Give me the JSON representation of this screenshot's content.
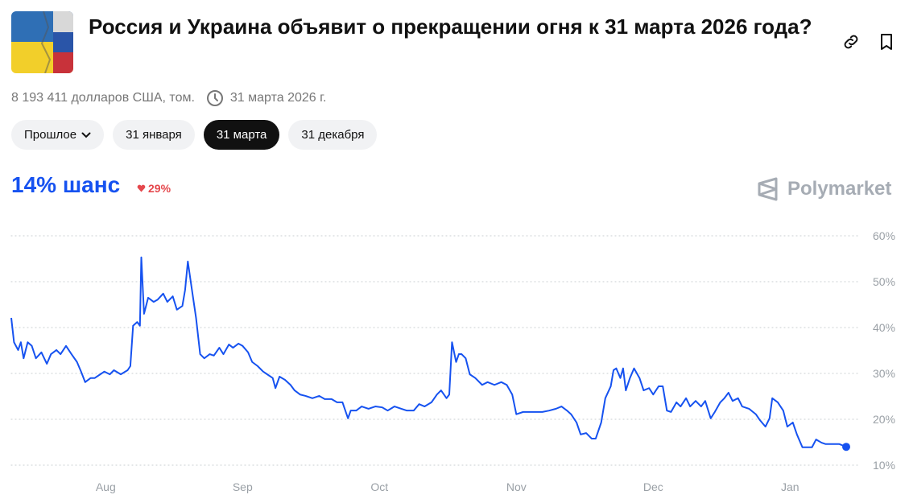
{
  "header": {
    "title": "Россия и Украина объявит о прекращении огня к 31 марта 2026 года?",
    "volume": "8 193 411 долларов США, том.",
    "end_date": "31 марта 2026 г."
  },
  "tabs": [
    "Прошлое",
    "31 января",
    "31 марта",
    "31 декабря"
  ],
  "active_tab": 2,
  "chance": {
    "label": "14% шанс",
    "change": "29%"
  },
  "brand": "Polymarket",
  "chart_data": {
    "type": "line",
    "x": [
      7.31,
      7.33,
      7.36,
      7.38,
      7.4,
      7.43,
      7.46,
      7.49,
      7.53,
      7.57,
      7.6,
      7.64,
      7.67,
      7.71,
      7.75,
      7.79,
      7.82,
      7.85,
      7.89,
      7.92,
      7.96,
      7.99,
      8.03,
      8.06,
      8.11,
      8.16,
      8.18,
      8.2,
      8.23,
      8.25,
      8.26,
      8.28,
      8.31,
      8.35,
      8.38,
      8.42,
      8.45,
      8.49,
      8.52,
      8.56,
      8.58,
      8.6,
      8.63,
      8.66,
      8.69,
      8.72,
      8.76,
      8.79,
      8.83,
      8.86,
      8.9,
      8.93,
      8.97,
      9.0,
      9.04,
      9.07,
      9.11,
      9.15,
      9.18,
      9.22,
      9.24,
      9.27,
      9.31,
      9.35,
      9.38,
      9.42,
      9.46,
      9.51,
      9.56,
      9.6,
      9.65,
      9.69,
      9.73,
      9.77,
      9.79,
      9.83,
      9.87,
      9.92,
      9.97,
      10.02,
      10.06,
      10.11,
      10.16,
      10.2,
      10.25,
      10.29,
      10.33,
      10.38,
      10.42,
      10.45,
      10.49,
      10.51,
      10.53,
      10.56,
      10.58,
      10.6,
      10.63,
      10.66,
      10.7,
      10.75,
      10.79,
      10.84,
      10.89,
      10.93,
      10.97,
      11.0,
      11.05,
      11.1,
      11.15,
      11.19,
      11.24,
      11.29,
      11.33,
      11.37,
      11.4,
      11.44,
      11.47,
      11.51,
      11.55,
      11.58,
      11.62,
      11.65,
      11.69,
      11.71,
      11.73,
      11.76,
      11.78,
      11.8,
      11.83,
      11.86,
      11.9,
      11.93,
      11.97,
      12.0,
      12.04,
      12.07,
      12.1,
      12.13,
      12.17,
      12.2,
      12.24,
      12.27,
      12.31,
      12.35,
      12.38,
      12.42,
      12.45,
      12.49,
      12.52,
      12.55,
      12.58,
      12.62,
      12.65,
      12.7,
      12.75,
      12.78,
      12.82,
      12.85,
      12.87,
      12.91,
      12.95,
      12.98,
      13.02,
      13.05,
      13.09,
      13.12,
      13.16,
      13.19,
      13.23,
      13.26,
      13.31,
      13.36,
      13.41
    ],
    "series": [
      {
        "color": "#1652f0",
        "values": [
          42.1,
          36.8,
          35.1,
          36.8,
          33.3,
          36.8,
          36.0,
          33.3,
          34.6,
          32.1,
          34.2,
          35.1,
          34.2,
          36.0,
          34.2,
          32.5,
          30.4,
          28.1,
          29.0,
          29.0,
          29.8,
          30.4,
          29.8,
          30.7,
          29.8,
          30.7,
          31.6,
          40.4,
          41.2,
          40.4,
          55.3,
          43.0,
          46.5,
          45.6,
          46.1,
          47.4,
          45.6,
          46.8,
          43.9,
          44.7,
          48.2,
          54.4,
          48.2,
          42.1,
          34.2,
          33.3,
          34.2,
          33.9,
          35.6,
          34.2,
          36.3,
          35.6,
          36.5,
          36.0,
          34.6,
          32.5,
          31.6,
          30.4,
          29.8,
          29.0,
          26.8,
          29.3,
          28.6,
          27.5,
          26.3,
          25.4,
          25.1,
          24.6,
          25.1,
          24.4,
          24.4,
          23.7,
          23.7,
          20.2,
          21.9,
          21.9,
          22.8,
          22.3,
          22.8,
          22.6,
          21.9,
          22.8,
          22.3,
          21.9,
          21.9,
          23.3,
          22.8,
          23.7,
          25.4,
          26.3,
          24.6,
          25.4,
          36.8,
          32.5,
          34.2,
          34.2,
          33.3,
          29.8,
          29.0,
          27.5,
          28.1,
          27.5,
          28.1,
          27.5,
          25.4,
          21.1,
          21.6,
          21.6,
          21.6,
          21.6,
          21.9,
          22.3,
          22.8,
          21.9,
          21.1,
          19.3,
          16.7,
          17.0,
          15.8,
          15.8,
          19.3,
          24.6,
          27.2,
          30.7,
          31.1,
          29.0,
          31.1,
          26.3,
          29.0,
          31.1,
          29.0,
          26.3,
          26.8,
          25.4,
          27.2,
          27.2,
          21.9,
          21.6,
          23.7,
          22.8,
          24.6,
          22.8,
          24.0,
          22.8,
          24.0,
          20.2,
          21.6,
          23.7,
          24.6,
          25.8,
          24.0,
          24.6,
          22.8,
          22.3,
          21.1,
          19.8,
          18.4,
          20.2,
          24.6,
          23.7,
          21.9,
          18.4,
          19.3,
          16.7,
          13.9,
          13.9,
          13.9,
          15.6,
          14.9,
          14.6,
          14.6,
          14.6,
          14.0
        ]
      }
    ],
    "xlim": [
      7.31,
      13.51
    ],
    "xticks": [
      {
        "value": 8,
        "label": "Aug"
      },
      {
        "value": 9,
        "label": "Sep"
      },
      {
        "value": 10,
        "label": "Oct"
      },
      {
        "value": 11,
        "label": "Nov"
      },
      {
        "value": 12,
        "label": "Dec"
      },
      {
        "value": 13,
        "label": "Jan"
      }
    ],
    "ylim": [
      10,
      60
    ],
    "yticks": [
      {
        "value": 10,
        "label": "10%"
      },
      {
        "value": 20,
        "label": "20%"
      },
      {
        "value": 30,
        "label": "30%"
      },
      {
        "value": 40,
        "label": "40%"
      },
      {
        "value": 50,
        "label": "50%"
      },
      {
        "value": 60,
        "label": "60%"
      }
    ],
    "grid": true
  }
}
